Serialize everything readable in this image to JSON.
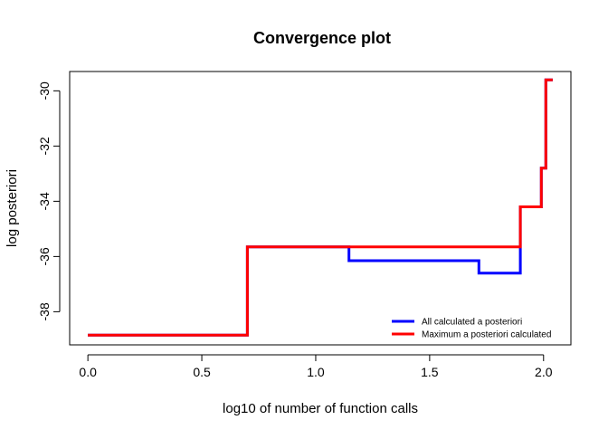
{
  "chart_data": {
    "type": "line",
    "title": "Convergence plot",
    "xlabel": "log10 of number of function calls",
    "ylabel": "log posteriori",
    "xlim": [
      -0.08,
      2.12
    ],
    "ylim": [
      -39.2,
      -29.3
    ],
    "x_ticks": [
      {
        "value": 0,
        "label": "0.0"
      },
      {
        "value": 0.5,
        "label": "0.5"
      },
      {
        "value": 1.0,
        "label": "1.0"
      },
      {
        "value": 1.5,
        "label": "1.5"
      },
      {
        "value": 2.0,
        "label": "2.0"
      }
    ],
    "y_ticks": [
      {
        "value": -30,
        "label": "-30"
      },
      {
        "value": -32,
        "label": "-32"
      },
      {
        "value": -34,
        "label": "-34"
      },
      {
        "value": -36,
        "label": "-36"
      },
      {
        "value": -38,
        "label": "-38"
      }
    ],
    "legend_position": "bottom-right",
    "grid": false,
    "series": [
      {
        "name": "All calculated a posteriori",
        "color": "#0000ff",
        "step": true,
        "x": [
          0.0,
          0.7,
          1.146,
          1.716,
          1.898,
          1.99,
          2.01,
          2.04
        ],
        "y": [
          -38.85,
          -35.65,
          -36.15,
          -36.6,
          -34.2,
          -32.8,
          -29.6,
          -29.6
        ]
      },
      {
        "name": "Maximum a posteriori calculated",
        "color": "#ff0000",
        "step": true,
        "x": [
          0.0,
          0.7,
          1.898,
          1.99,
          2.01,
          2.04
        ],
        "y": [
          -38.85,
          -35.65,
          -34.2,
          -32.8,
          -29.6,
          -29.6
        ]
      }
    ]
  }
}
